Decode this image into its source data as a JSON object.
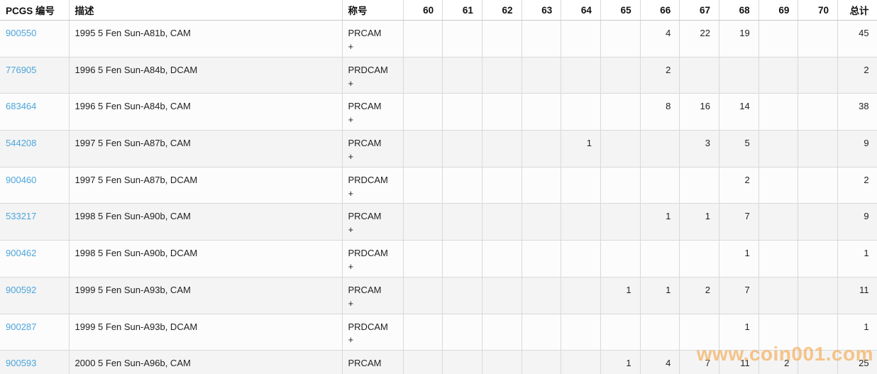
{
  "page": {
    "watermark": "www.coin001.com"
  },
  "colors": {
    "link": "#4da5dd",
    "watermark": "#f7941e",
    "grid": "#d9d9d9",
    "row_alt": "#f4f4f4",
    "row_main": "#fcfcfc"
  },
  "table": {
    "headers": [
      "PCGS 编号",
      "描述",
      "称号",
      "60",
      "61",
      "62",
      "63",
      "64",
      "65",
      "66",
      "67",
      "68",
      "69",
      "70",
      "总计"
    ],
    "header_keys": [
      "pcgs",
      "description",
      "designation",
      "60",
      "61",
      "62",
      "63",
      "64",
      "65",
      "66",
      "67",
      "68",
      "69",
      "70",
      "total"
    ],
    "rows": [
      {
        "pcgs": "900550",
        "description": "1995 5 Fen Sun-A81b, CAM",
        "designation": "PRCAM +",
        "grades": [
          "",
          "",
          "",
          "",
          "",
          "",
          "4",
          "22",
          "19",
          "",
          ""
        ],
        "total": "45"
      },
      {
        "pcgs": "776905",
        "description": "1996 5 Fen Sun-A84b, DCAM",
        "designation": "PRDCAM +",
        "grades": [
          "",
          "",
          "",
          "",
          "",
          "",
          "2",
          "",
          "",
          "",
          ""
        ],
        "total": "2"
      },
      {
        "pcgs": "683464",
        "description": "1996 5 Fen Sun-A84b, CAM",
        "designation": "PRCAM +",
        "grades": [
          "",
          "",
          "",
          "",
          "",
          "",
          "8",
          "16",
          "14",
          "",
          ""
        ],
        "total": "38"
      },
      {
        "pcgs": "544208",
        "description": "1997 5 Fen Sun-A87b, CAM",
        "designation": "PRCAM +",
        "grades": [
          "",
          "",
          "",
          "",
          "1",
          "",
          "",
          "3",
          "5",
          "",
          ""
        ],
        "total": "9"
      },
      {
        "pcgs": "900460",
        "description": "1997 5 Fen Sun-A87b, DCAM",
        "designation": "PRDCAM +",
        "grades": [
          "",
          "",
          "",
          "",
          "",
          "",
          "",
          "",
          "2",
          "",
          ""
        ],
        "total": "2"
      },
      {
        "pcgs": "533217",
        "description": "1998 5 Fen Sun-A90b, CAM",
        "designation": "PRCAM +",
        "grades": [
          "",
          "",
          "",
          "",
          "",
          "",
          "1",
          "1",
          "7",
          "",
          ""
        ],
        "total": "9"
      },
      {
        "pcgs": "900462",
        "description": "1998 5 Fen Sun-A90b, DCAM",
        "designation": "PRDCAM +",
        "grades": [
          "",
          "",
          "",
          "",
          "",
          "",
          "",
          "",
          "1",
          "",
          ""
        ],
        "total": "1"
      },
      {
        "pcgs": "900592",
        "description": "1999 5 Fen Sun-A93b, CAM",
        "designation": "PRCAM +",
        "grades": [
          "",
          "",
          "",
          "",
          "",
          "1",
          "1",
          "2",
          "7",
          "",
          ""
        ],
        "total": "11"
      },
      {
        "pcgs": "900287",
        "description": "1999 5 Fen Sun-A93b, DCAM",
        "designation": "PRDCAM +",
        "grades": [
          "",
          "",
          "",
          "",
          "",
          "",
          "",
          "",
          "1",
          "",
          ""
        ],
        "total": "1"
      },
      {
        "pcgs": "900593",
        "description": "2000 5 Fen Sun-A96b, CAM",
        "designation": "PRCAM +",
        "grades": [
          "",
          "",
          "",
          "",
          "",
          "1",
          "4",
          "7",
          "11",
          "2",
          ""
        ],
        "total": "25"
      }
    ]
  }
}
